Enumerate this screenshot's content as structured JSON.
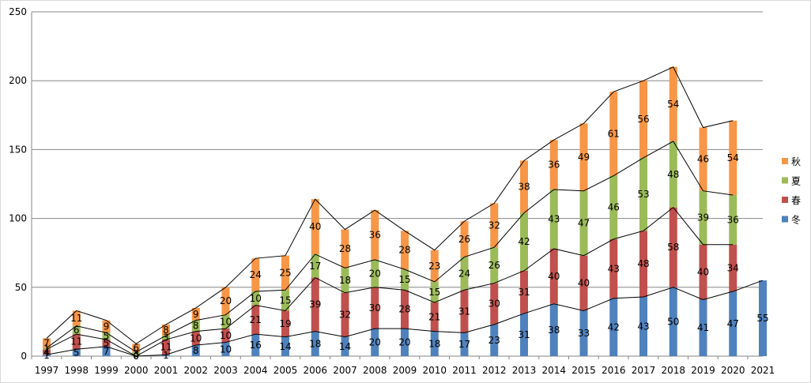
{
  "chart_data": {
    "type": "bar",
    "stacked": true,
    "categories": [
      "1997",
      "1998",
      "1999",
      "2000",
      "2001",
      "2002",
      "2003",
      "2004",
      "2005",
      "2006",
      "2007",
      "2008",
      "2009",
      "2010",
      "2011",
      "2012",
      "2013",
      "2014",
      "2015",
      "2016",
      "2017",
      "2018",
      "2019",
      "2020",
      "2021"
    ],
    "series": [
      {
        "name": "冬",
        "color": "#4f81bd",
        "values": [
          1,
          5,
          7,
          0,
          1,
          8,
          10,
          16,
          14,
          18,
          14,
          20,
          20,
          18,
          17,
          23,
          31,
          38,
          33,
          42,
          43,
          50,
          41,
          47,
          55
        ]
      },
      {
        "name": "春",
        "color": "#c0504d",
        "values": [
          4,
          11,
          5,
          0,
          11,
          10,
          10,
          21,
          19,
          39,
          32,
          30,
          28,
          21,
          31,
          30,
          31,
          40,
          40,
          43,
          48,
          58,
          40,
          34,
          null
        ]
      },
      {
        "name": "夏",
        "color": "#9bbb59",
        "values": [
          1,
          6,
          5,
          3,
          3,
          8,
          10,
          10,
          15,
          17,
          18,
          20,
          15,
          15,
          24,
          26,
          42,
          43,
          47,
          46,
          53,
          48,
          39,
          36,
          null
        ]
      },
      {
        "name": "秋",
        "color": "#f79646",
        "values": [
          7,
          11,
          9,
          6,
          8,
          9,
          20,
          24,
          25,
          40,
          28,
          36,
          28,
          23,
          26,
          32,
          38,
          36,
          49,
          61,
          56,
          54,
          46,
          54,
          null
        ]
      }
    ],
    "y_ticks": [
      "0",
      "50",
      "100",
      "150",
      "200",
      "250"
    ],
    "ylim": [
      0,
      250
    ],
    "grid": true,
    "legend_position": "right",
    "show_data_labels": true,
    "cumulative_lines": true
  }
}
